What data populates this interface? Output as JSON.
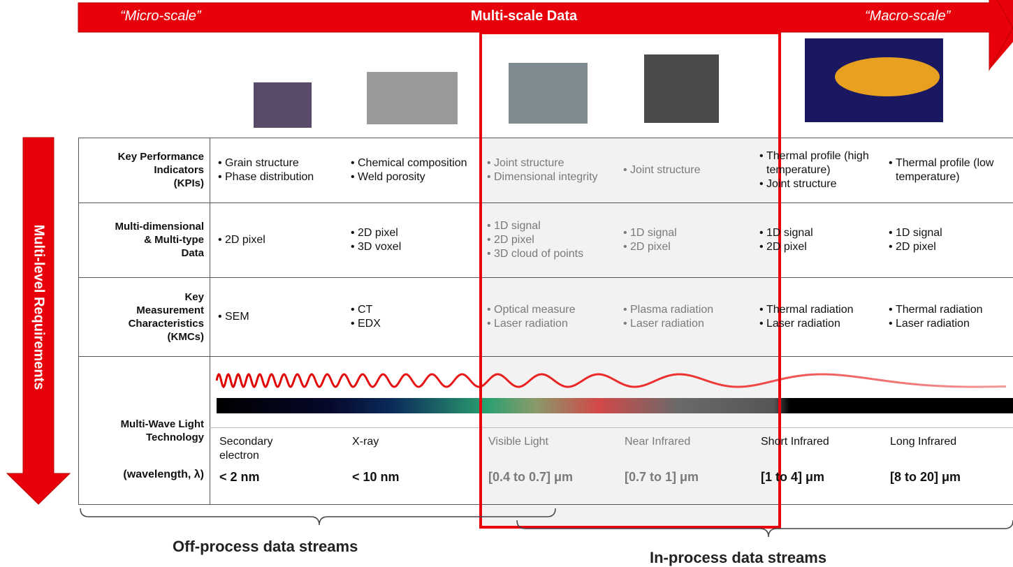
{
  "header": {
    "micro": "“Micro-scale”",
    "title": "Multi-scale Data",
    "macro": "“Macro-scale”"
  },
  "side_label": "Multi-level Requirements",
  "rows": [
    {
      "label": [
        "Key Performance",
        "Indicators",
        "(KPIs)"
      ],
      "cells": [
        [
          "Grain structure",
          "Phase distribution"
        ],
        [
          "Chemical composition",
          "Weld porosity"
        ],
        [
          "Joint structure",
          "Dimensional integrity"
        ],
        [
          "Joint structure"
        ],
        [
          "Thermal profile (high temperature)",
          "Joint structure"
        ],
        [
          "Thermal profile (low temperature)"
        ]
      ]
    },
    {
      "label": [
        "Multi-dimensional",
        "& Multi-type",
        "Data"
      ],
      "cells": [
        [
          "2D pixel"
        ],
        [
          "2D pixel",
          "3D voxel"
        ],
        [
          "1D signal",
          "2D pixel",
          "3D cloud of points"
        ],
        [
          "1D signal",
          "2D pixel"
        ],
        [
          "1D signal",
          "2D pixel"
        ],
        [
          "1D signal",
          "2D pixel"
        ]
      ]
    },
    {
      "label": [
        "Key",
        "Measurement",
        "Characteristics",
        "(KMCs)"
      ],
      "cells": [
        [
          "SEM"
        ],
        [
          "CT",
          "EDX"
        ],
        [
          "Optical measure",
          "Laser radiation"
        ],
        [
          "Plasma radiation",
          "Laser radiation"
        ],
        [
          "Thermal radiation",
          "Laser radiation"
        ],
        [
          "Thermal radiation",
          "Laser radiation"
        ]
      ]
    }
  ],
  "light": {
    "label": [
      "Multi-Wave Light",
      "Technology"
    ],
    "wavelength_label": "(wavelength, λ)",
    "bands": [
      {
        "name": "Secondary electron",
        "wavelength": "< 2 nm"
      },
      {
        "name": "X-ray",
        "wavelength": "< 10 nm"
      },
      {
        "name": "Visible Light",
        "wavelength": "[0.4 to 0.7] μm"
      },
      {
        "name": "Near Infrared",
        "wavelength": "[0.7 to 1] μm"
      },
      {
        "name": "Short Infrared",
        "wavelength": "[1 to 4] μm"
      },
      {
        "name": "Long Infrared",
        "wavelength": "[8 to 20] μm"
      }
    ]
  },
  "footer": {
    "off_process": "Off-process data streams",
    "in_process": "In-process data streams"
  }
}
